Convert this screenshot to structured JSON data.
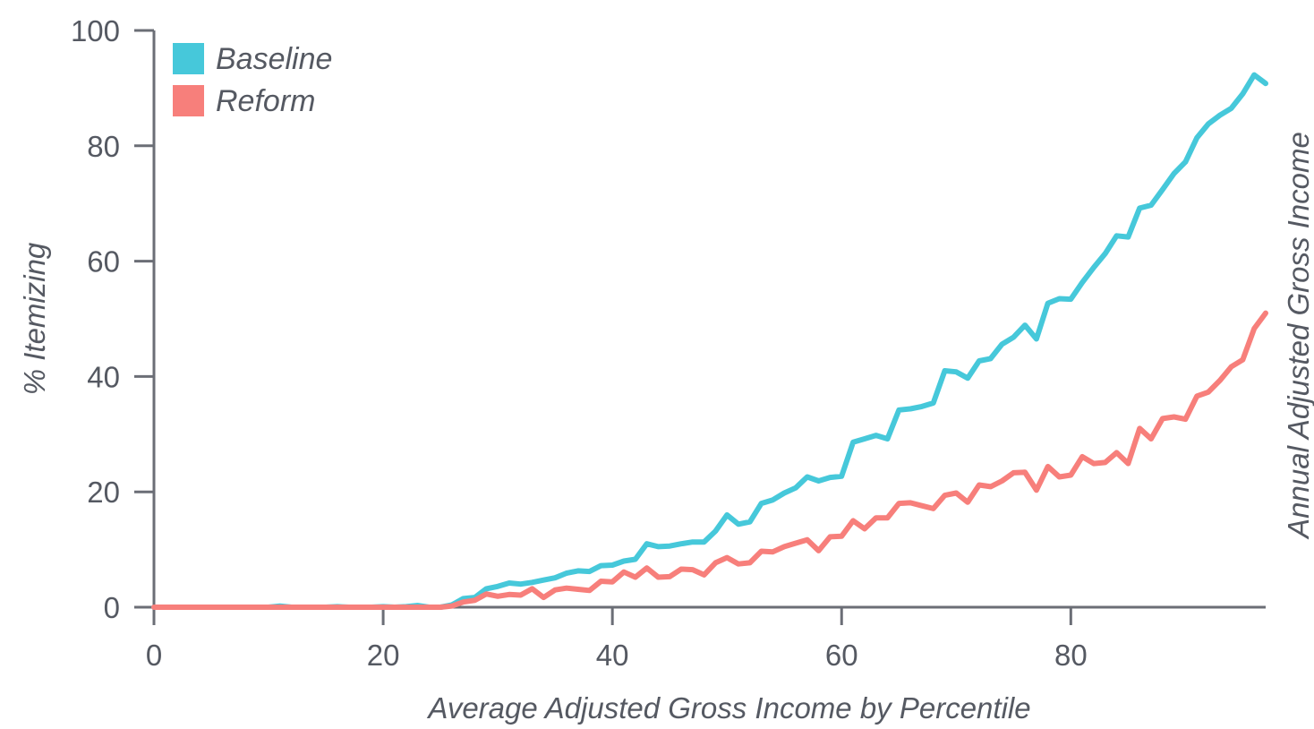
{
  "chart_data": {
    "type": "line",
    "title": "",
    "xlabel": "Average Adjusted Gross Income by Percentile",
    "ylabel": "% Itemizing",
    "y2label": "Annual Adjusted Gross Income",
    "xlim": [
      0,
      97
    ],
    "ylim": [
      0,
      100
    ],
    "x_ticks": [
      "0",
      "20",
      "40",
      "60",
      "80"
    ],
    "y_ticks": [
      "0",
      "20",
      "40",
      "60",
      "80",
      "100"
    ],
    "grid": false,
    "legend_position": "top-left",
    "series": [
      {
        "name": "Baseline",
        "color": "#46C8DA",
        "x": [
          0,
          1,
          2,
          3,
          4,
          5,
          6,
          7,
          8,
          9,
          10,
          11,
          12,
          13,
          14,
          15,
          16,
          17,
          18,
          19,
          20,
          21,
          22,
          23,
          24,
          25,
          26,
          27,
          28,
          29,
          30,
          31,
          32,
          33,
          34,
          35,
          36,
          37,
          38,
          39,
          40,
          41,
          42,
          43,
          44,
          45,
          46,
          47,
          48,
          49,
          50,
          51,
          52,
          53,
          54,
          55,
          56,
          57,
          58,
          59,
          60,
          61,
          62,
          63,
          64,
          65,
          66,
          67,
          68,
          69,
          70,
          71,
          72,
          73,
          74,
          75,
          76,
          77,
          78,
          79,
          80,
          81,
          82,
          83,
          84,
          85,
          86,
          87,
          88,
          89,
          90,
          91,
          92,
          93,
          94,
          95,
          96,
          97
        ],
        "values": [
          0,
          0,
          0,
          0,
          0,
          0,
          0,
          0,
          0,
          0,
          0,
          0.2,
          0,
          0,
          0,
          0,
          0.1,
          0,
          0,
          0,
          0.1,
          0,
          0.1,
          0.3,
          0,
          0,
          0.4,
          1.5,
          1.7,
          3.2,
          3.6,
          4.2,
          4.0,
          4.3,
          4.7,
          5.1,
          5.9,
          6.3,
          6.2,
          7.2,
          7.3,
          8.0,
          8.3,
          11.0,
          10.5,
          10.6,
          11.0,
          11.3,
          11.3,
          13.2,
          16.0,
          14.4,
          14.8,
          18.0,
          18.6,
          19.8,
          20.7,
          22.6,
          21.9,
          22.5,
          22.7,
          28.6,
          29.2,
          29.8,
          29.2,
          34.2,
          34.4,
          34.8,
          35.4,
          41.0,
          40.8,
          39.7,
          42.7,
          43.1,
          45.6,
          46.8,
          48.9,
          46.5,
          52.7,
          53.5,
          53.4,
          56.3,
          58.9,
          61.3,
          64.4,
          64.2,
          69.2,
          69.7,
          72.4,
          75.2,
          77.2,
          81.4,
          83.8,
          85.3,
          86.5,
          89.0,
          92.3,
          90.8
        ]
      },
      {
        "name": "Reform",
        "color": "#F77F7B",
        "x": [
          0,
          1,
          2,
          3,
          4,
          5,
          6,
          7,
          8,
          9,
          10,
          11,
          12,
          13,
          14,
          15,
          16,
          17,
          18,
          19,
          20,
          21,
          22,
          23,
          24,
          25,
          26,
          27,
          28,
          29,
          30,
          31,
          32,
          33,
          34,
          35,
          36,
          37,
          38,
          39,
          40,
          41,
          42,
          43,
          44,
          45,
          46,
          47,
          48,
          49,
          50,
          51,
          52,
          53,
          54,
          55,
          56,
          57,
          58,
          59,
          60,
          61,
          62,
          63,
          64,
          65,
          66,
          67,
          68,
          69,
          70,
          71,
          72,
          73,
          74,
          75,
          76,
          77,
          78,
          79,
          80,
          81,
          82,
          83,
          84,
          85,
          86,
          87,
          88,
          89,
          90,
          91,
          92,
          93,
          94,
          95,
          96,
          97
        ],
        "values": [
          0,
          0,
          0,
          0,
          0,
          0,
          0,
          0,
          0,
          0,
          0,
          0,
          0,
          0,
          0,
          0,
          0,
          0,
          0,
          0,
          0,
          0,
          0,
          0,
          0,
          0,
          0.2,
          0.9,
          1.2,
          2.3,
          1.9,
          2.2,
          2.1,
          3.2,
          1.7,
          3.0,
          3.3,
          3.1,
          2.9,
          4.5,
          4.4,
          6.1,
          5.2,
          6.8,
          5.2,
          5.3,
          6.6,
          6.5,
          5.6,
          7.7,
          8.6,
          7.5,
          7.7,
          9.7,
          9.6,
          10.5,
          11.1,
          11.7,
          9.8,
          12.2,
          12.3,
          15.0,
          13.6,
          15.5,
          15.5,
          18.0,
          18.1,
          17.6,
          17.1,
          19.4,
          19.8,
          18.2,
          21.2,
          20.9,
          21.9,
          23.3,
          23.4,
          20.3,
          24.4,
          22.6,
          22.9,
          26.1,
          24.9,
          25.1,
          26.8,
          24.9,
          31.0,
          29.2,
          32.7,
          33.0,
          32.6,
          36.6,
          37.3,
          39.3,
          41.7,
          42.9,
          48.3,
          51.0
        ]
      }
    ]
  }
}
